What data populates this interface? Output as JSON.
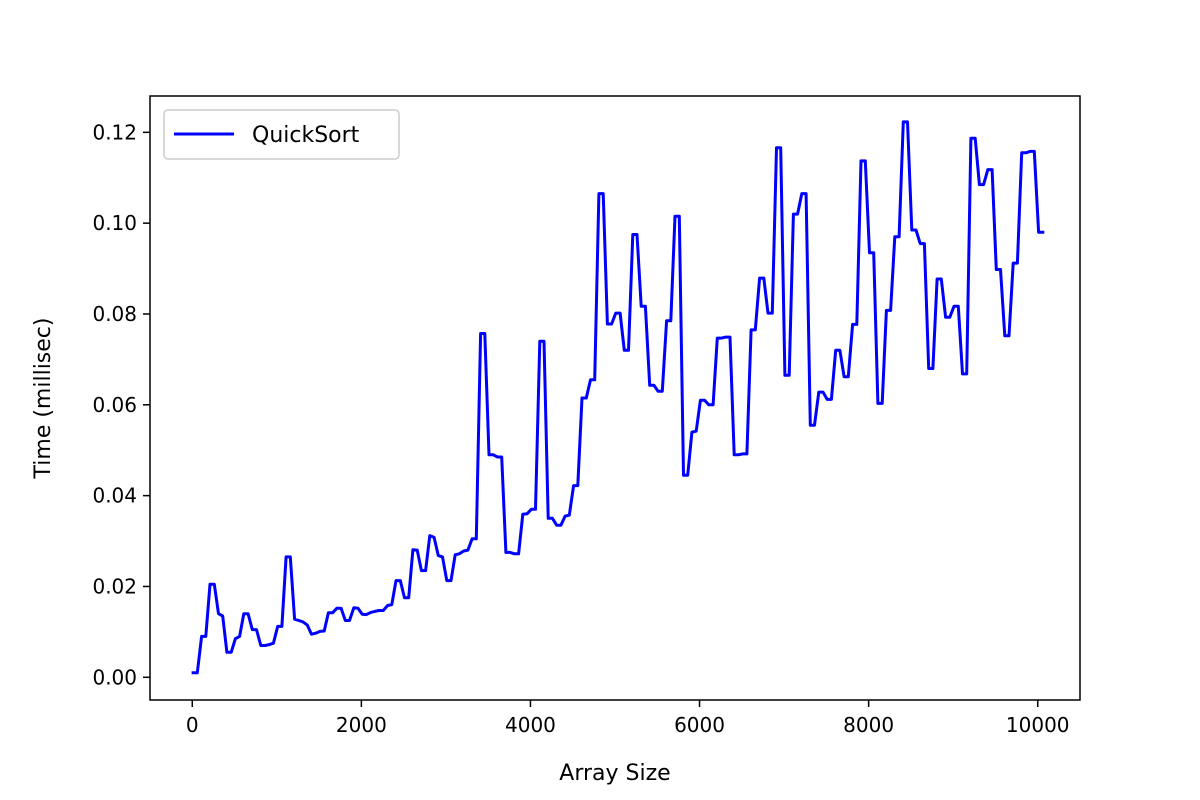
{
  "chart_data": {
    "type": "line",
    "title": "",
    "xlabel": "Array Size",
    "ylabel": "Time (millisec)",
    "xlim": [
      -500,
      10500
    ],
    "ylim": [
      -0.005,
      0.128
    ],
    "xticks": [
      0,
      2000,
      4000,
      6000,
      8000,
      10000
    ],
    "xtick_labels": [
      "0",
      "2000",
      "4000",
      "6000",
      "8000",
      "10000"
    ],
    "yticks": [
      0.0,
      0.02,
      0.04,
      0.06,
      0.08,
      0.1,
      0.12
    ],
    "ytick_labels": [
      "0.00",
      "0.02",
      "0.04",
      "0.06",
      "0.08",
      "0.10",
      "0.12"
    ],
    "grid": false,
    "legend_position": "upper-left",
    "colors": {
      "line": "#0000ff",
      "axes": "#000000",
      "legend_border": "#cccccc"
    },
    "series": [
      {
        "name": "QuickSort",
        "x": [
          10,
          60,
          110,
          160,
          210,
          260,
          310,
          360,
          410,
          460,
          510,
          560,
          610,
          660,
          710,
          760,
          810,
          860,
          910,
          960,
          1010,
          1060,
          1110,
          1160,
          1210,
          1260,
          1310,
          1360,
          1410,
          1460,
          1510,
          1560,
          1610,
          1660,
          1710,
          1760,
          1810,
          1860,
          1910,
          1960,
          2010,
          2060,
          2110,
          2160,
          2210,
          2260,
          2310,
          2360,
          2410,
          2460,
          2510,
          2560,
          2610,
          2660,
          2710,
          2760,
          2810,
          2860,
          2910,
          2960,
          3010,
          3060,
          3110,
          3160,
          3210,
          3260,
          3310,
          3360,
          3410,
          3460,
          3510,
          3560,
          3610,
          3660,
          3710,
          3760,
          3810,
          3860,
          3910,
          3960,
          4010,
          4060,
          4110,
          4160,
          4210,
          4260,
          4310,
          4360,
          4410,
          4460,
          4510,
          4560,
          4610,
          4660,
          4710,
          4760,
          4810,
          4860,
          4910,
          4960,
          5010,
          5060,
          5110,
          5160,
          5210,
          5260,
          5310,
          5360,
          5410,
          5460,
          5510,
          5560,
          5610,
          5660,
          5710,
          5760,
          5810,
          5860,
          5910,
          5960,
          6010,
          6060,
          6110,
          6160,
          6210,
          6260,
          6310,
          6360,
          6410,
          6460,
          6510,
          6560,
          6610,
          6660,
          6710,
          6760,
          6810,
          6860,
          6910,
          6960,
          7010,
          7060,
          7110,
          7160,
          7210,
          7260,
          7310,
          7360,
          7410,
          7460,
          7510,
          7560,
          7610,
          7660,
          7710,
          7760,
          7810,
          7860,
          7910,
          7960,
          8010,
          8060,
          8110,
          8160,
          8210,
          8260,
          8310,
          8360,
          8410,
          8460,
          8510,
          8560,
          8610,
          8660,
          8710,
          8760,
          8810,
          8860,
          8910,
          8960,
          9010,
          9060,
          9110,
          9160,
          9210,
          9260,
          9310,
          9360,
          9410,
          9460,
          9510,
          9560,
          9610,
          9660,
          9710,
          9760,
          9810,
          9860,
          9910,
          9960,
          10010,
          10060
        ],
        "y": [
          0.001,
          0.001,
          0.009,
          0.009,
          0.0205,
          0.0205,
          0.014,
          0.0135,
          0.0055,
          0.0055,
          0.0085,
          0.009,
          0.014,
          0.014,
          0.0105,
          0.0105,
          0.007,
          0.007,
          0.0072,
          0.0075,
          0.0112,
          0.0112,
          0.0265,
          0.0265,
          0.0128,
          0.0125,
          0.0122,
          0.0115,
          0.0095,
          0.0097,
          0.0101,
          0.0102,
          0.0142,
          0.0142,
          0.0152,
          0.0152,
          0.0125,
          0.0125,
          0.0153,
          0.0152,
          0.0139,
          0.0138,
          0.0143,
          0.0145,
          0.0147,
          0.0147,
          0.0158,
          0.016,
          0.0213,
          0.0213,
          0.0175,
          0.0175,
          0.0281,
          0.028,
          0.0235,
          0.0235,
          0.0312,
          0.0308,
          0.0268,
          0.0265,
          0.0213,
          0.0213,
          0.027,
          0.0272,
          0.0278,
          0.028,
          0.0305,
          0.0305,
          0.0757,
          0.0757,
          0.049,
          0.049,
          0.0485,
          0.0485,
          0.0275,
          0.0275,
          0.0272,
          0.0272,
          0.0359,
          0.036,
          0.037,
          0.037,
          0.074,
          0.074,
          0.035,
          0.035,
          0.0335,
          0.0335,
          0.0355,
          0.0357,
          0.0422,
          0.0422,
          0.0615,
          0.0615,
          0.0655,
          0.0655,
          0.1065,
          0.1065,
          0.0778,
          0.0778,
          0.0802,
          0.0802,
          0.072,
          0.072,
          0.0975,
          0.0975,
          0.0817,
          0.0817,
          0.0643,
          0.0643,
          0.063,
          0.063,
          0.0785,
          0.0785,
          0.1015,
          0.1015,
          0.0445,
          0.0445,
          0.054,
          0.0542,
          0.061,
          0.061,
          0.06,
          0.06,
          0.0747,
          0.0747,
          0.0749,
          0.0749,
          0.049,
          0.049,
          0.0492,
          0.0492,
          0.0765,
          0.0765,
          0.0879,
          0.0879,
          0.0802,
          0.0802,
          0.1166,
          0.1166,
          0.0665,
          0.0665,
          0.102,
          0.102,
          0.1065,
          0.1065,
          0.0555,
          0.0555,
          0.0628,
          0.0628,
          0.0612,
          0.0612,
          0.072,
          0.072,
          0.0662,
          0.0662,
          0.0777,
          0.0777,
          0.1137,
          0.1137,
          0.0935,
          0.0935,
          0.0603,
          0.0603,
          0.0808,
          0.0808,
          0.097,
          0.097,
          0.1223,
          0.1223,
          0.0985,
          0.0985,
          0.0955,
          0.0955,
          0.068,
          0.068,
          0.0877,
          0.0877,
          0.0793,
          0.0793,
          0.0817,
          0.0817,
          0.0668,
          0.0668,
          0.1187,
          0.1187,
          0.1085,
          0.1085,
          0.1118,
          0.1118,
          0.0898,
          0.0898,
          0.0752,
          0.0752,
          0.0912,
          0.0912,
          0.1155,
          0.1155,
          0.1158,
          0.1158,
          0.098,
          0.098
        ]
      }
    ]
  }
}
